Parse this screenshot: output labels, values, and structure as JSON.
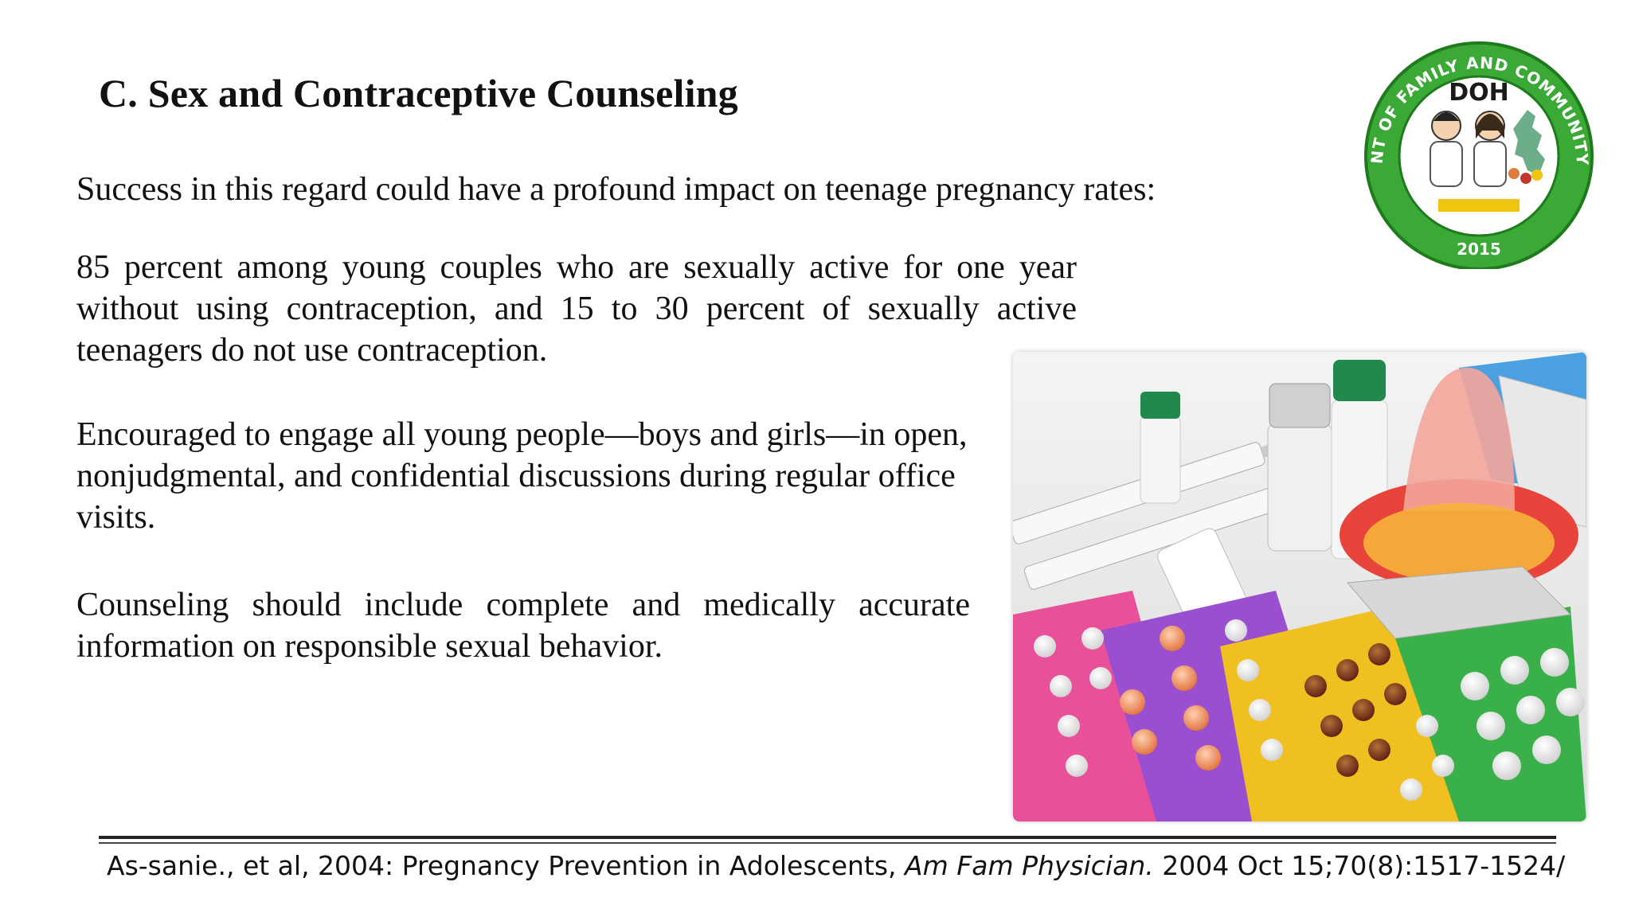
{
  "slide": {
    "title": "C. Sex and Contraceptive Counseling",
    "subtitle": "Success in this regard could have a profound impact on teenage pregnancy rates:",
    "paragraphs": [
      "85 percent among young couples who are sexually active for one year without using contraception, and 15 to 30 percent of sexually active teenagers do not use contraception.",
      "Encouraged to engage all young people—boys and girls—in open, nonjudgmental, and confidential discussions during regular office visits.",
      "Counseling should include complete and medically accurate information on responsible sexual behavior."
    ]
  },
  "logo": {
    "arc_text": "DEPARTMENT OF FAMILY AND COMMUNITY MEDICINE",
    "center_text": "DOH",
    "year": "2015",
    "colors": {
      "ring": "#3aa935",
      "ring_dark": "#1e7a1c",
      "text": "#ffffff",
      "inner": "#ffffff"
    }
  },
  "photo": {
    "icon": "contraceptives-photo"
  },
  "citation": {
    "prefix": "As-sanie., et al, 2004: Pregnancy Prevention in Adolescents, ",
    "journal": "Am Fam Physician.",
    "suffix": " 2004 Oct 15;70(8):1517-1524/"
  }
}
